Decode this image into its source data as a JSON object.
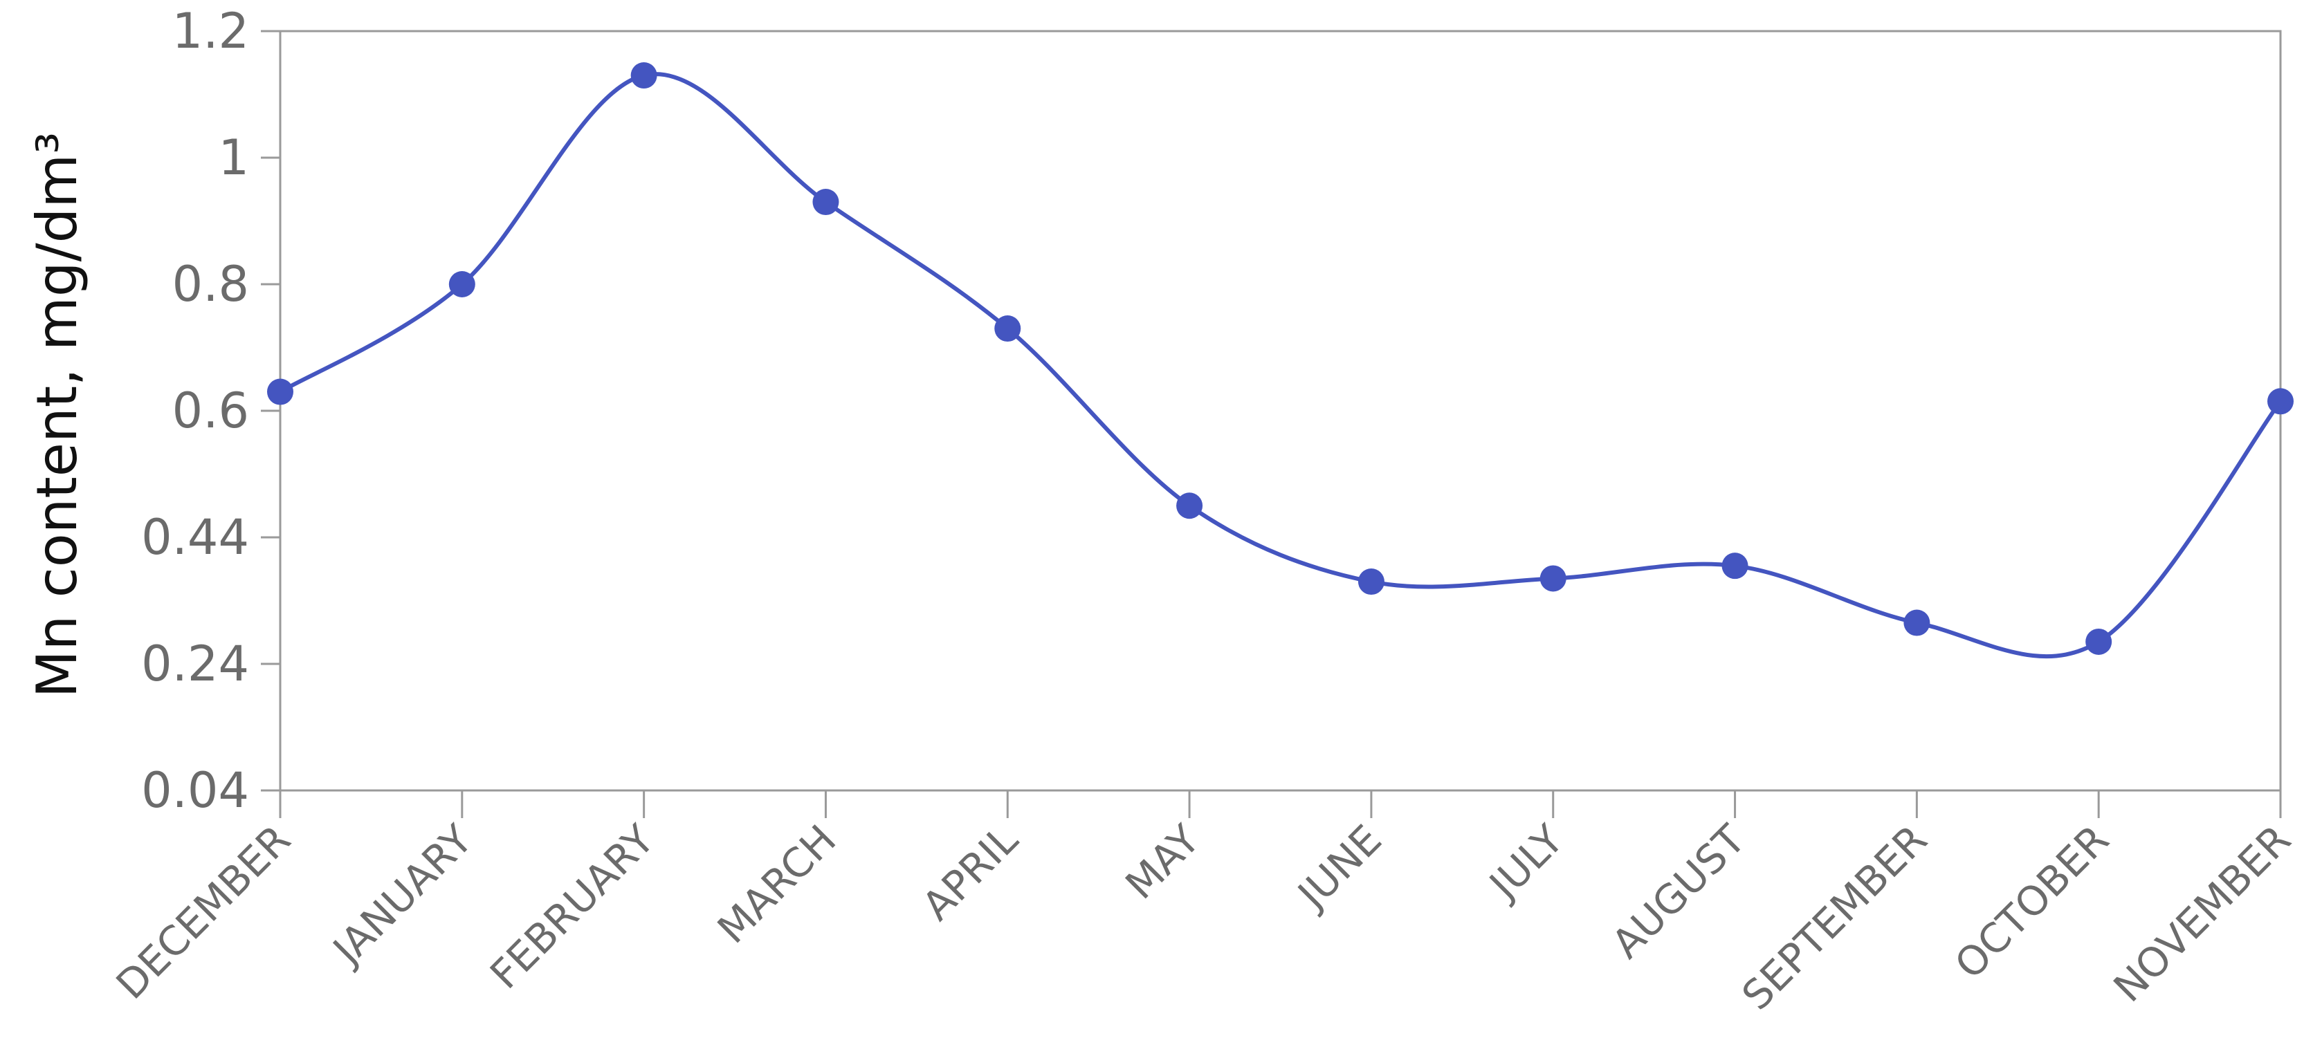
{
  "chart_data": {
    "type": "line",
    "title": "",
    "xlabel": "",
    "ylabel": "Mn content,  mg/dm³",
    "categories": [
      "DECEMBER",
      "JANUARY",
      "FEBRUARY",
      "MARCH",
      "APRIL",
      "MAY",
      "JUNE",
      "JULY",
      "AUGUST",
      "SEPTEMBER",
      "OCTOBER",
      "NOVEMBER"
    ],
    "yticks": [
      "0.04",
      "0.24",
      "0.44",
      "0.6",
      "0.8",
      "1",
      "1.2"
    ],
    "series": [
      {
        "values": [
          0.63,
          0.8,
          1.13,
          0.93,
          0.73,
          0.48,
          0.37,
          0.375,
          0.395,
          0.305,
          0.275,
          0.615
        ]
      }
    ],
    "smooth": true,
    "markers": true,
    "grid": false,
    "legend": "none",
    "colors": {
      "series": "#4455c0",
      "axis": "#9a9a9a",
      "frame": "#9a9a9a"
    }
  }
}
